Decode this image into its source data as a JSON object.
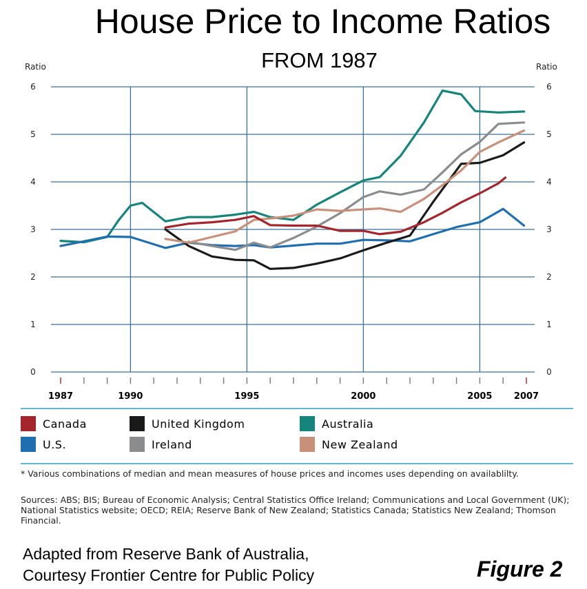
{
  "header": {
    "title": "House Price to Income Ratios",
    "subtitle": "FROM 1987"
  },
  "chart_data": {
    "type": "line",
    "ylabel_left": "Ratio",
    "ylabel_right": "Ratio",
    "ylim": [
      0,
      6
    ],
    "y_ticks": [
      "0",
      "1",
      "2",
      "3",
      "4",
      "5",
      "6"
    ],
    "xlim": [
      1987,
      2007
    ],
    "x_tick_labels": [
      {
        "value": 1987,
        "label": "1987",
        "color": "#a4262c"
      },
      {
        "value": 1990,
        "label": "1990",
        "color": "#000000"
      },
      {
        "value": 1995,
        "label": "1995",
        "color": "#000000"
      },
      {
        "value": 2000,
        "label": "2000",
        "color": "#000000"
      },
      {
        "value": 2005,
        "label": "2005",
        "color": "#000000"
      },
      {
        "value": 2007,
        "label": "2007",
        "color": "#a4262c"
      }
    ],
    "vertical_grid_years": [
      1990,
      1995,
      2000,
      2005
    ],
    "grid": true,
    "legend_placement": "bottom",
    "series": [
      {
        "name": "Australia",
        "color": "#15847a",
        "x": [
          1987,
          1988,
          1989,
          1989.5,
          1990,
          1990.5,
          1991.5,
          1992.5,
          1993.5,
          1994.5,
          1995.3,
          1996,
          1997,
          1998,
          1999,
          2000,
          2000.7,
          2001.6,
          2002.6,
          2003.4,
          2004.2,
          2004.8,
          2005.8,
          2006.9
        ],
        "y": [
          2.76,
          2.73,
          2.84,
          3.2,
          3.5,
          3.56,
          3.17,
          3.26,
          3.26,
          3.31,
          3.37,
          3.26,
          3.2,
          3.52,
          3.78,
          4.03,
          4.1,
          4.55,
          5.25,
          5.92,
          5.84,
          5.49,
          5.46,
          5.48
        ]
      },
      {
        "name": "U.S.",
        "color": "#1f6fb0",
        "x": [
          1987,
          1988,
          1989,
          1990,
          1991.5,
          1992.5,
          1993.5,
          1994.5,
          1995.3,
          1996,
          1997,
          1998,
          1999,
          2000,
          2001,
          2002,
          2003,
          2004,
          2005,
          2006,
          2006.9
        ],
        "y": [
          2.65,
          2.75,
          2.85,
          2.84,
          2.61,
          2.72,
          2.67,
          2.65,
          2.67,
          2.62,
          2.66,
          2.7,
          2.7,
          2.78,
          2.77,
          2.75,
          2.9,
          3.05,
          3.15,
          3.43,
          3.08
        ]
      },
      {
        "name": "United Kingdom",
        "color": "#1a1a1a",
        "x": [
          1991.5,
          1992.5,
          1993.5,
          1994.5,
          1995.3,
          1996,
          1997,
          1998,
          1999,
          2000,
          2001,
          2002,
          2003,
          2004.2,
          2005,
          2006,
          2006.9
        ],
        "y": [
          3.0,
          2.65,
          2.43,
          2.36,
          2.35,
          2.17,
          2.19,
          2.28,
          2.39,
          2.56,
          2.72,
          2.87,
          3.58,
          4.38,
          4.4,
          4.56,
          4.83
        ]
      },
      {
        "name": "Ireland",
        "color": "#8a8c8e",
        "x": [
          1992.5,
          1993.5,
          1994.5,
          1995.3,
          1996,
          1997,
          1998,
          1999,
          2000,
          2000.7,
          2001.6,
          2002.6,
          2003.4,
          2004.2,
          2005,
          2005.8,
          2006.9
        ],
        "y": [
          2.74,
          2.65,
          2.57,
          2.72,
          2.62,
          2.82,
          3.06,
          3.34,
          3.68,
          3.8,
          3.73,
          3.84,
          4.2,
          4.58,
          4.84,
          5.22,
          5.25
        ]
      },
      {
        "name": "New Zealand",
        "color": "#c99079",
        "x": [
          1991.5,
          1992.5,
          1993.5,
          1994.5,
          1995.3,
          1996,
          1997,
          1998,
          1999,
          2000,
          2000.7,
          2001.6,
          2002.6,
          2003.4,
          2004.2,
          2005,
          2005.8,
          2006.9
        ],
        "y": [
          2.8,
          2.72,
          2.84,
          2.96,
          3.2,
          3.23,
          3.29,
          3.42,
          3.39,
          3.42,
          3.44,
          3.37,
          3.64,
          3.93,
          4.24,
          4.63,
          4.83,
          5.08
        ]
      },
      {
        "name": "Canada",
        "color": "#a4262c",
        "x": [
          1991.5,
          1992.5,
          1993.5,
          1994.5,
          1995.3,
          1996,
          1997,
          1998,
          1999,
          2000,
          2000.7,
          2001.6,
          2002.6,
          2003.4,
          2004.2,
          2005,
          2005.8,
          2006.1
        ],
        "y": [
          3.04,
          3.12,
          3.15,
          3.2,
          3.28,
          3.09,
          3.08,
          3.08,
          2.97,
          2.97,
          2.9,
          2.95,
          3.15,
          3.35,
          3.57,
          3.76,
          3.97,
          4.09
        ]
      }
    ]
  },
  "legend": {
    "items": [
      {
        "name": "Canada",
        "color": "#a4262c"
      },
      {
        "name": "United Kingdom",
        "color": "#1a1a1a"
      },
      {
        "name": "Australia",
        "color": "#15847a"
      },
      {
        "name": "U.S.",
        "color": "#1f6fb0"
      },
      {
        "name": "Ireland",
        "color": "#8a8c8e"
      },
      {
        "name": "New Zealand",
        "color": "#c99079"
      }
    ]
  },
  "footnotes": {
    "note": "* Various combinations of median and mean measures of house prices and incomes uses depending on availablilty.",
    "sources": "Sources: ABS; BIS; Bureau of Economic Analysis; Central Statistics Office Ireland; Communications and Local Government (UK); National Statistics website; OECD; REIA; Reserve Bank of New Zealand; Statistics Canada; Statistics New Zealand; Thomson Financial."
  },
  "credit": {
    "line1": "Adapted from Reserve Bank of Australia,",
    "line2": "Courtesy Frontier Centre for Public Policy"
  },
  "figure_label": "Figure 2"
}
